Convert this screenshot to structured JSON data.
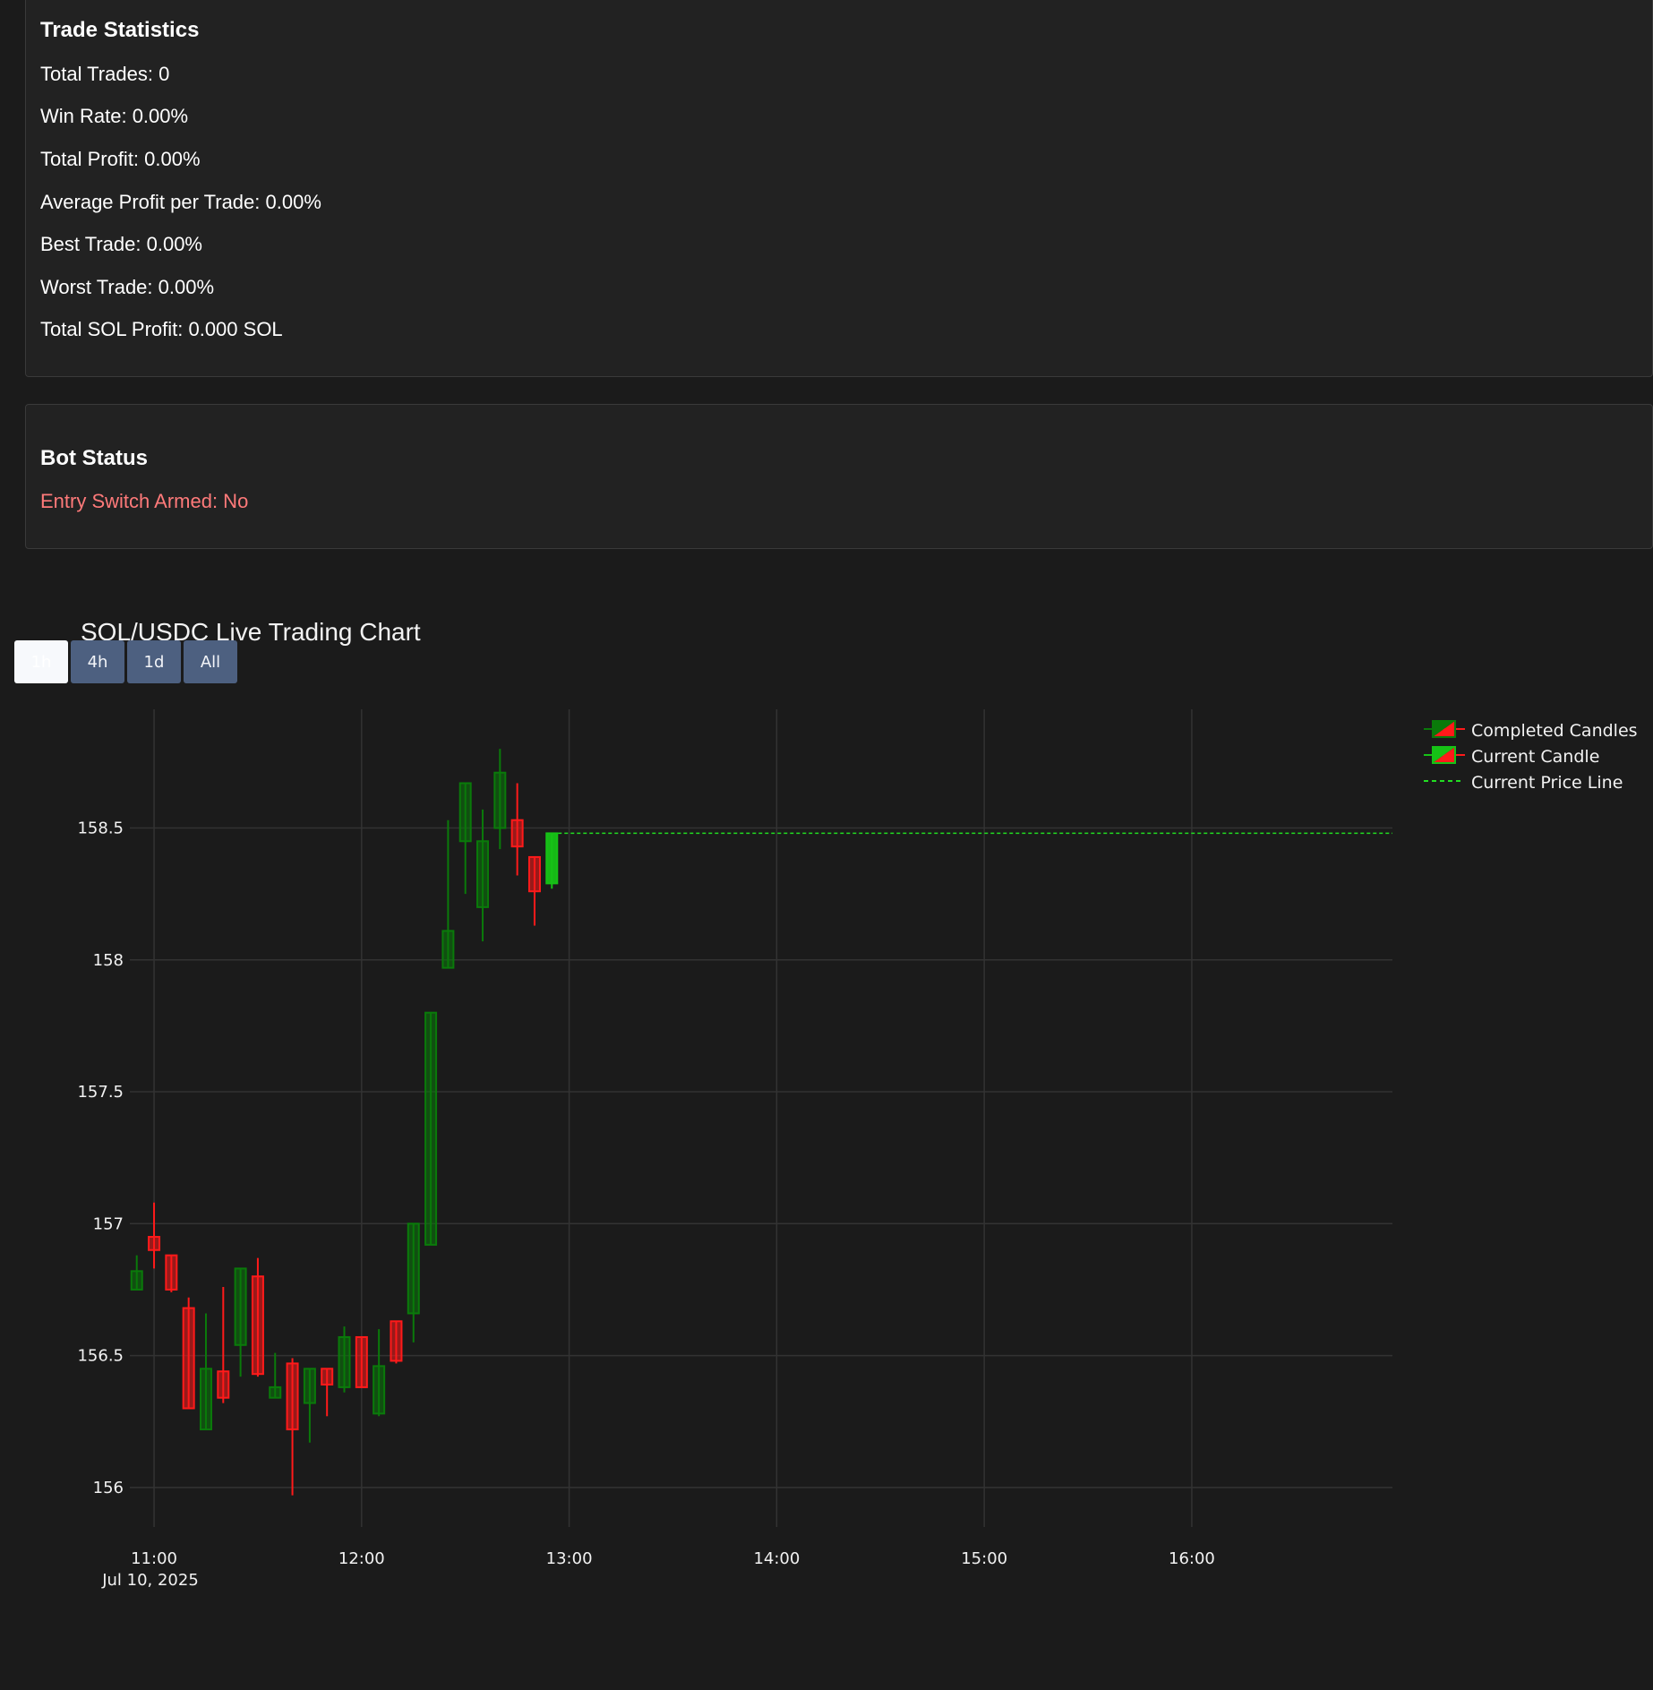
{
  "trade_statistics": {
    "title": "Trade Statistics",
    "total_trades": "Total Trades: 0",
    "win_rate": "Win Rate: 0.00%",
    "total_profit": "Total Profit: 0.00%",
    "avg_profit": "Average Profit per Trade: 0.00%",
    "best_trade": "Best Trade: 0.00%",
    "worst_trade": "Worst Trade: 0.00%",
    "total_sol_profit": "Total SOL Profit: 0.000 SOL"
  },
  "bot_status": {
    "title": "Bot Status",
    "entry_switch": "Entry Switch Armed: No"
  },
  "chart": {
    "range_buttons": [
      "1h",
      "4h",
      "1d",
      "All"
    ],
    "active_range": "1h",
    "colors": {
      "up": "#0a7a0a",
      "up_current": "#16c216",
      "down": "#ff1a1a",
      "price_line": "#22dd22",
      "grid": "#333333"
    }
  },
  "chart_data": {
    "type": "candlestick",
    "title": "SOL/USDC Live Trading Chart",
    "x_ticks": [
      "11:00",
      "12:00",
      "13:00",
      "14:00",
      "15:00",
      "16:00"
    ],
    "x_date_label": "Jul 10, 2025",
    "xlim": [
      "10:53",
      "16:58"
    ],
    "y_ticks": [
      156,
      156.5,
      157,
      157.5,
      158,
      158.5
    ],
    "ylim": [
      155.85,
      158.95
    ],
    "legend": [
      "Completed Candles",
      "Current Candle",
      "Current Price Line"
    ],
    "legend_position": "top-right",
    "current_price": 158.48,
    "candles": [
      {
        "t": "10:55",
        "o": 156.75,
        "h": 156.88,
        "l": 156.75,
        "c": 156.82
      },
      {
        "t": "11:00",
        "o": 156.95,
        "h": 157.08,
        "l": 156.83,
        "c": 156.9
      },
      {
        "t": "11:05",
        "o": 156.88,
        "h": 156.88,
        "l": 156.74,
        "c": 156.75
      },
      {
        "t": "11:10",
        "o": 156.68,
        "h": 156.72,
        "l": 156.3,
        "c": 156.3
      },
      {
        "t": "11:15",
        "o": 156.22,
        "h": 156.66,
        "l": 156.22,
        "c": 156.45
      },
      {
        "t": "11:20",
        "o": 156.44,
        "h": 156.76,
        "l": 156.32,
        "c": 156.34
      },
      {
        "t": "11:25",
        "o": 156.54,
        "h": 156.83,
        "l": 156.42,
        "c": 156.83
      },
      {
        "t": "11:30",
        "o": 156.8,
        "h": 156.87,
        "l": 156.42,
        "c": 156.43
      },
      {
        "t": "11:35",
        "o": 156.34,
        "h": 156.51,
        "l": 156.34,
        "c": 156.38
      },
      {
        "t": "11:40",
        "o": 156.47,
        "h": 156.49,
        "l": 155.97,
        "c": 156.22
      },
      {
        "t": "11:45",
        "o": 156.32,
        "h": 156.45,
        "l": 156.17,
        "c": 156.45
      },
      {
        "t": "11:50",
        "o": 156.45,
        "h": 156.45,
        "l": 156.27,
        "c": 156.39
      },
      {
        "t": "11:55",
        "o": 156.38,
        "h": 156.61,
        "l": 156.36,
        "c": 156.57
      },
      {
        "t": "12:00",
        "o": 156.57,
        "h": 156.57,
        "l": 156.38,
        "c": 156.38
      },
      {
        "t": "12:05",
        "o": 156.28,
        "h": 156.6,
        "l": 156.27,
        "c": 156.46
      },
      {
        "t": "12:10",
        "o": 156.63,
        "h": 156.63,
        "l": 156.47,
        "c": 156.48
      },
      {
        "t": "12:15",
        "o": 156.66,
        "h": 157.0,
        "l": 156.55,
        "c": 157.0
      },
      {
        "t": "12:20",
        "o": 156.92,
        "h": 157.8,
        "l": 156.92,
        "c": 157.8
      },
      {
        "t": "12:25",
        "o": 157.97,
        "h": 158.53,
        "l": 157.97,
        "c": 158.11
      },
      {
        "t": "12:30",
        "o": 158.45,
        "h": 158.67,
        "l": 158.25,
        "c": 158.67
      },
      {
        "t": "12:35",
        "o": 158.2,
        "h": 158.57,
        "l": 158.07,
        "c": 158.45
      },
      {
        "t": "12:40",
        "o": 158.5,
        "h": 158.8,
        "l": 158.42,
        "c": 158.71
      },
      {
        "t": "12:45",
        "o": 158.53,
        "h": 158.67,
        "l": 158.32,
        "c": 158.43
      },
      {
        "t": "12:50",
        "o": 158.39,
        "h": 158.39,
        "l": 158.13,
        "c": 158.26
      },
      {
        "t": "12:55",
        "o": 158.29,
        "h": 158.48,
        "l": 158.27,
        "c": 158.48,
        "current": true
      }
    ]
  }
}
